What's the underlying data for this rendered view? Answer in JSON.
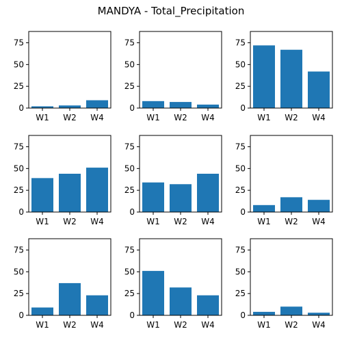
{
  "title": "MANDYA - Total_Precipitation",
  "colors": {
    "bar": "#1f77b4"
  },
  "chart_data": {
    "type": "bar",
    "layout": "3x3 small multiples, shared y-axis range",
    "title": "MANDYA - Total_Precipitation",
    "ylim": [
      0,
      88
    ],
    "yticks": [
      0,
      25,
      50,
      75
    ],
    "grid": false,
    "charts": [
      {
        "type": "bar",
        "categories": [
          "W1",
          "W2",
          "W4"
        ],
        "values": [
          2,
          3,
          9
        ]
      },
      {
        "type": "bar",
        "categories": [
          "W1",
          "W2",
          "W4"
        ],
        "values": [
          8,
          7,
          4
        ]
      },
      {
        "type": "bar",
        "categories": [
          "W1",
          "W2",
          "W4"
        ],
        "values": [
          72,
          67,
          42
        ]
      },
      {
        "type": "bar",
        "categories": [
          "W1",
          "W2",
          "W4"
        ],
        "values": [
          39,
          44,
          51
        ]
      },
      {
        "type": "bar",
        "categories": [
          "W1",
          "W2",
          "W4"
        ],
        "values": [
          34,
          32,
          44
        ]
      },
      {
        "type": "bar",
        "categories": [
          "W1",
          "W2",
          "W4"
        ],
        "values": [
          8,
          17,
          14
        ]
      },
      {
        "type": "bar",
        "categories": [
          "W1",
          "W2",
          "W4"
        ],
        "values": [
          9,
          37,
          23
        ]
      },
      {
        "type": "bar",
        "categories": [
          "W1",
          "W2",
          "W4"
        ],
        "values": [
          51,
          32,
          23
        ]
      },
      {
        "type": "bar",
        "categories": [
          "W1",
          "W2",
          "W4"
        ],
        "values": [
          4,
          10,
          3
        ]
      }
    ]
  }
}
